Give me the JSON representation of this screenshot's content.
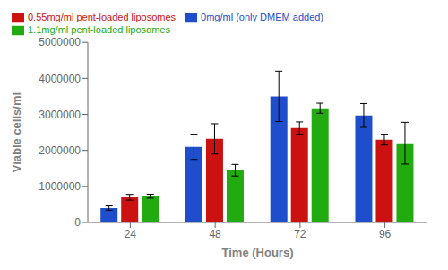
{
  "chart_data": {
    "type": "bar",
    "categories": [
      "24",
      "48",
      "72",
      "96"
    ],
    "xlabel": "Time (Hours)",
    "ylabel": "Viable cells/ml",
    "series": [
      {
        "name": "0mg/ml (only DMEM added)",
        "color": "#1E4ECC",
        "values": [
          400000,
          2100000,
          3500000,
          2970000
        ],
        "errors": [
          60000,
          350000,
          700000,
          330000
        ]
      },
      {
        "name": "0.55mg/ml pent-loaded liposomes",
        "color": "#CC1111",
        "values": [
          700000,
          2320000,
          2620000,
          2300000
        ],
        "errors": [
          80000,
          420000,
          170000,
          150000
        ]
      },
      {
        "name": "1.1mg/ml pent-loaded liposomes",
        "color": "#22AA11",
        "values": [
          730000,
          1450000,
          3170000,
          2200000
        ],
        "errors": [
          55000,
          160000,
          140000,
          580000
        ]
      }
    ],
    "ylim": [
      0,
      5000000
    ],
    "yticks": [
      0,
      1000000,
      2000000,
      3000000,
      4000000,
      5000000
    ],
    "legend": "upper left",
    "grid": false
  }
}
